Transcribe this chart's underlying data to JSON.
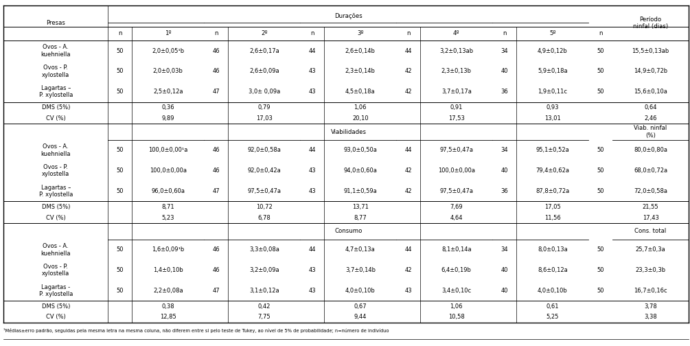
{
  "section1_header": "Durações",
  "section1_last_col_header": "Período\nninfal (dias)",
  "section1_rows": [
    [
      "Ovos - A.\nkuehniella",
      "50",
      "2,0±0,05¹b",
      "46",
      "2,6±0,17a",
      "44",
      "2,6±0,14b",
      "44",
      "3,2±0,13ab",
      "34",
      "4,9±0,12b",
      "50",
      "15,5±0,13ab"
    ],
    [
      "Ovos - P.\nxylostella",
      "50",
      "2,0±0,03b",
      "46",
      "2,6±0,09a",
      "43",
      "2,3±0,14b",
      "42",
      "2,3±0,13b",
      "40",
      "5,9±0,18a",
      "50",
      "14,9±0,72b"
    ],
    [
      "Lagartas –\nP. xylostella",
      "50",
      "2,5±0,12a",
      "47",
      "3,0± 0,09a",
      "43",
      "4,5±0,18a",
      "42",
      "3,7±0,17a",
      "36",
      "1,9±0,11c",
      "50",
      "15,6±0,10a"
    ],
    [
      "DMS (5%)",
      "",
      "0,36",
      "",
      "0,79",
      "",
      "1,06",
      "",
      "0,91",
      "",
      "0,93",
      "",
      "0,64"
    ],
    [
      "CV (%)",
      "",
      "9,89",
      "",
      "17,03",
      "",
      "20,10",
      "",
      "17,53",
      "",
      "13,01",
      "",
      "2,46"
    ]
  ],
  "section2_header": "Viabilidades",
  "section2_last_col_header": "Viab. ninfal\n(%)",
  "section2_rows": [
    [
      "Ovos - A.\nkuehniella",
      "50",
      "100,0±0,00¹a",
      "46",
      "92,0±0,58a",
      "44",
      "93,0±0,50a",
      "44",
      "97,5±0,47a",
      "34",
      "95,1±0,52a",
      "50",
      "80,0±0,80a"
    ],
    [
      "Ovos - P.\nxylostella",
      "50",
      "100,0±0,00a",
      "46",
      "92,0±0,42a",
      "43",
      "94,0±0,60a",
      "42",
      "100,0±0,00a",
      "40",
      "79,4±0,62a",
      "50",
      "68,0±0,72a"
    ],
    [
      "Lagartas –\nP. xylostella",
      "50",
      "96,0±0,60a",
      "47",
      "97,5±0,47a",
      "43",
      "91,1±0,59a",
      "42",
      "97,5±0,47a",
      "36",
      "87,8±0,72a",
      "50",
      "72,0±0,58a"
    ],
    [
      "DMS (5%)",
      "",
      "8,71",
      "",
      "10,72",
      "",
      "13,71",
      "",
      "7,69",
      "",
      "17,05",
      "",
      "21,55"
    ],
    [
      "CV (%)",
      "",
      "5,23",
      "",
      "6,78",
      "",
      "8,77",
      "",
      "4,64",
      "",
      "11,56",
      "",
      "17,43"
    ]
  ],
  "section3_header": "Consumo",
  "section3_last_col_header": "Cons. total",
  "section3_rows": [
    [
      "Ovos - A.\nkuehniella",
      "50",
      "1,6±0,09¹b",
      "46",
      "3,3±0,08a",
      "44",
      "4,7±0,13a",
      "44",
      "8,1±0,14a",
      "34",
      "8,0±0,13a",
      "50",
      "25,7±0,3a"
    ],
    [
      "Ovos - P.\nxylostella",
      "50",
      "1,4±0,10b",
      "46",
      "3,2±0,09a",
      "43",
      "3,7±0,14b",
      "42",
      "6,4±0,19b",
      "40",
      "8,6±0,12a",
      "50",
      "23,3±0,3b"
    ],
    [
      "Lagartas -\nP. xylostella",
      "50",
      "2,2±0,08a",
      "47",
      "3,1±0,12a",
      "43",
      "4,0±0,10b",
      "43",
      "3,4±0,10c",
      "40",
      "4,0±0,10b",
      "50",
      "16,7±0,16c"
    ],
    [
      "DMS (5%)",
      "",
      "0,38",
      "",
      "0,42",
      "",
      "0,67",
      "",
      "1,06",
      "",
      "0,61",
      "",
      "3,78"
    ],
    [
      "CV (%)",
      "",
      "12,85",
      "",
      "7,75",
      "",
      "9,44",
      "",
      "10,58",
      "",
      "5,25",
      "",
      "3,38"
    ]
  ],
  "col_headers_n": [
    "n",
    "1º",
    "n",
    "2º",
    "n",
    "3º",
    "n",
    "4º",
    "n",
    "5º",
    "n"
  ],
  "footnote": "¹Médias±erro padrão, seguidas pela mesma letra na mesma coluna, não diferem entre si pelo teste de Tukey, ao nível de 5% de probabilidade; n=número de indivíduo"
}
